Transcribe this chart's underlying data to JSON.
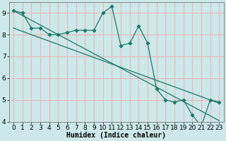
{
  "title": "",
  "xlabel": "Humidex (Indice chaleur)",
  "bg_color": "#cce8e8",
  "grid_color": "#e8b8b8",
  "line_color": "#1a7a6a",
  "x_data": [
    0,
    1,
    2,
    3,
    4,
    5,
    6,
    7,
    8,
    9,
    10,
    11,
    12,
    13,
    14,
    15,
    16,
    17,
    18,
    19,
    20,
    21,
    22,
    23
  ],
  "y_main": [
    9.1,
    9.0,
    8.3,
    8.3,
    8.0,
    8.0,
    8.1,
    8.2,
    8.2,
    8.2,
    9.0,
    9.3,
    7.5,
    7.6,
    8.4,
    7.6,
    5.5,
    5.0,
    4.9,
    5.0,
    4.3,
    3.8,
    5.0,
    4.9
  ],
  "trend1_x0": 0,
  "trend1_y0": 9.1,
  "trend1_x1": 23,
  "trend1_y1": 4.05,
  "trend2_x0": 0,
  "trend2_y0": 8.3,
  "trend2_x1": 23,
  "trend2_y1": 4.85,
  "ylim": [
    4,
    9.5
  ],
  "xlim": [
    -0.5,
    23.5
  ],
  "yticks": [
    4,
    5,
    6,
    7,
    8,
    9
  ],
  "xticks": [
    0,
    1,
    2,
    3,
    4,
    5,
    6,
    7,
    8,
    9,
    10,
    11,
    12,
    13,
    14,
    15,
    16,
    17,
    18,
    19,
    20,
    21,
    22,
    23
  ],
  "xlabel_fontsize": 7,
  "tick_fontsize": 6.5
}
